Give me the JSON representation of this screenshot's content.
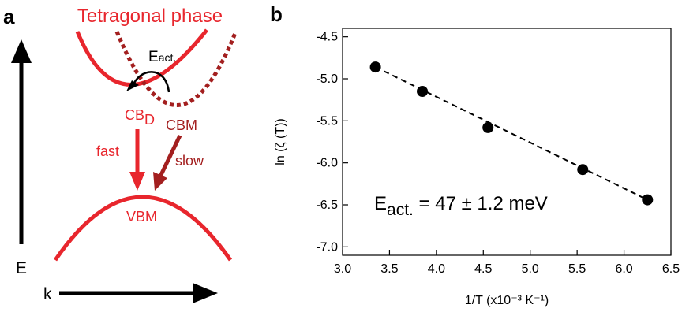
{
  "panel_a": {
    "panel_label": "a",
    "title": "Tetragonal phase",
    "activation_label": "E",
    "activation_sub": "act.",
    "cbd_label": "CB",
    "cbd_sub": "D",
    "cbm_label": "CBM",
    "vbm_label": "VBM",
    "fast_label": "fast",
    "slow_label": "slow",
    "energy_axis_label": "E",
    "momentum_axis_label": "k",
    "colors": {
      "direct": "#e8262d",
      "indirect": "#a31f1f"
    }
  },
  "panel_b": {
    "panel_label": "b",
    "annotation_main": "E",
    "annotation_sub": "act.",
    "annotation_rest": " = 47 ± 1.2 meV"
  },
  "chart_data": {
    "type": "scatter",
    "xlabel": "1/T (x10⁻³  K⁻¹)",
    "ylabel": "ln (ζ (T))",
    "xlim": [
      3.0,
      6.5
    ],
    "ylim": [
      -7.1,
      -4.4
    ],
    "xticks": [
      "3.0",
      "3.5",
      "4.0",
      "4.5",
      "5.0",
      "5.5",
      "6.0",
      "6.5"
    ],
    "yticks": [
      "-4.5",
      "-5.0",
      "-5.5",
      "-6.0",
      "-6.5",
      "-7.0"
    ],
    "grid": false,
    "points": [
      {
        "x": 3.35,
        "y": -4.86
      },
      {
        "x": 3.85,
        "y": -5.15
      },
      {
        "x": 4.55,
        "y": -5.58
      },
      {
        "x": 5.56,
        "y": -6.08
      },
      {
        "x": 6.25,
        "y": -6.44
      }
    ],
    "fit": {
      "x": [
        3.35,
        6.25
      ],
      "y": [
        -4.86,
        -6.44
      ],
      "style": "dashed"
    }
  }
}
